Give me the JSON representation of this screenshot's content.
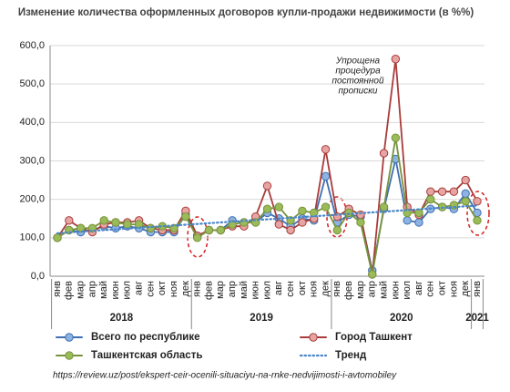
{
  "chart_data": {
    "type": "line",
    "title": "Изменение количества оформленных договоров купли-продажи недвижимости (в %%)",
    "annotation": [
      "Упрощена",
      "процедура",
      "постоянной",
      "прописки"
    ],
    "source": "https://review.uz/post/ekspert-ceir-ocenili-situaciyu-na-rnke-nedvijimosti-i-avtomobiley",
    "categories": [
      "янв",
      "фев",
      "мар",
      "апр",
      "май",
      "июн",
      "июл",
      "авг",
      "сен",
      "окт",
      "ноя",
      "дек",
      "янв",
      "фев",
      "мар",
      "апр",
      "май",
      "июн",
      "июл",
      "авг",
      "сен",
      "окт",
      "ноя",
      "дек",
      "янв",
      "фев",
      "мар",
      "апр",
      "май",
      "июн",
      "июл",
      "авг",
      "сен",
      "окт",
      "ноя",
      "дек",
      "янв"
    ],
    "years": [
      "2018",
      "2019",
      "2020",
      "2021"
    ],
    "ylim": [
      0,
      600
    ],
    "yticks": [
      {
        "value": 0,
        "label": "0,0"
      },
      {
        "value": 100,
        "label": "100,0"
      },
      {
        "value": 200,
        "label": "200,0"
      },
      {
        "value": 300,
        "label": "300,0"
      },
      {
        "value": 400,
        "label": "400,0"
      },
      {
        "value": 500,
        "label": "500,0"
      },
      {
        "value": 600,
        "label": "600,0"
      }
    ],
    "grid": true,
    "series": [
      {
        "name": "Всего по республике",
        "color": "#3e6fb0",
        "marker_color": "#8db3e2",
        "values": [
          100,
          120,
          115,
          120,
          130,
          125,
          130,
          125,
          115,
          115,
          115,
          160,
          105,
          120,
          120,
          145,
          140,
          140,
          165,
          150,
          130,
          150,
          145,
          260,
          140,
          160,
          155,
          15,
          175,
          305,
          145,
          140,
          175,
          180,
          175,
          215,
          165
        ]
      },
      {
        "name": "Город Ташкент",
        "color": "#a83c3a",
        "marker_color": "#e6a5a3",
        "values": [
          100,
          145,
          125,
          115,
          135,
          140,
          140,
          145,
          125,
          120,
          120,
          170,
          105,
          120,
          120,
          130,
          130,
          155,
          235,
          135,
          120,
          140,
          150,
          330,
          155,
          175,
          160,
          5,
          320,
          565,
          180,
          160,
          220,
          220,
          220,
          250,
          195
        ]
      },
      {
        "name": "Ташкентская область",
        "color": "#77933c",
        "marker_color": "#9bbb59",
        "values": [
          100,
          120,
          125,
          125,
          145,
          140,
          135,
          135,
          125,
          130,
          125,
          155,
          100,
          120,
          120,
          135,
          140,
          140,
          175,
          180,
          145,
          170,
          165,
          180,
          120,
          165,
          140,
          5,
          180,
          360,
          165,
          165,
          200,
          180,
          185,
          195,
          145
        ]
      },
      {
        "name": "Тренд",
        "color": "#4a86c8",
        "line_style": "dotted",
        "values": [
          112,
          114,
          116,
          118,
          120,
          122,
          124,
          126,
          128,
          130,
          132,
          134,
          136,
          138,
          140,
          142,
          144,
          146,
          148,
          150,
          152,
          154,
          156,
          158,
          160,
          162,
          164,
          166,
          168,
          170,
          172,
          174,
          176,
          178,
          180,
          182,
          184
        ]
      }
    ]
  }
}
